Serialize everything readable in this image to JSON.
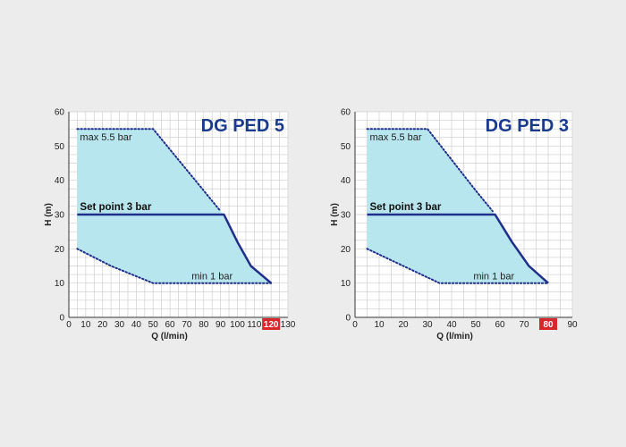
{
  "chart_data": [
    {
      "type": "area",
      "title": "DG PED 5",
      "xlabel": "Q (l/min)",
      "ylabel": "H (m)",
      "xlim": [
        0,
        130
      ],
      "ylim": [
        0,
        60
      ],
      "x_ticks": [
        0,
        10,
        20,
        30,
        40,
        50,
        60,
        70,
        80,
        90,
        100,
        110,
        120,
        130
      ],
      "y_ticks": [
        0,
        10,
        20,
        30,
        40,
        50,
        60
      ],
      "highlighted_x_tick": 120,
      "grid": true,
      "fill_color": "#b8e6ee",
      "line_color": "#1f2f8a",
      "highlight_color": "#d9262b",
      "max_curve": {
        "label": "max 5.5 bar",
        "points": [
          [
            5,
            55
          ],
          [
            50,
            55
          ],
          [
            65,
            46
          ],
          [
            80,
            37
          ],
          [
            90,
            31
          ]
        ]
      },
      "set_point": {
        "label": "Set point 3 bar",
        "points": [
          [
            5,
            30
          ],
          [
            92,
            30
          ],
          [
            100,
            22
          ],
          [
            108,
            15
          ],
          [
            120,
            10
          ]
        ]
      },
      "min_curve": {
        "label": "min 1 bar",
        "points": [
          [
            5,
            20
          ],
          [
            25,
            15
          ],
          [
            50,
            10
          ],
          [
            120,
            10
          ]
        ]
      }
    },
    {
      "type": "area",
      "title": "DG PED 3",
      "xlabel": "Q (l/min)",
      "ylabel": "H (m)",
      "xlim": [
        0,
        90
      ],
      "ylim": [
        0,
        60
      ],
      "x_ticks": [
        0,
        10,
        20,
        30,
        40,
        50,
        60,
        70,
        80,
        90
      ],
      "y_ticks": [
        0,
        10,
        20,
        30,
        40,
        50,
        60
      ],
      "highlighted_x_tick": 80,
      "grid": true,
      "fill_color": "#b8e6ee",
      "line_color": "#1f2f8a",
      "highlight_color": "#d9262b",
      "max_curve": {
        "label": "max 5.5 bar",
        "points": [
          [
            5,
            55
          ],
          [
            30,
            55
          ],
          [
            40,
            46
          ],
          [
            50,
            37
          ],
          [
            57,
            31
          ]
        ]
      },
      "set_point": {
        "label": "Set point 3 bar",
        "points": [
          [
            5,
            30
          ],
          [
            58,
            30
          ],
          [
            65,
            22
          ],
          [
            72,
            15
          ],
          [
            80,
            10
          ]
        ]
      },
      "min_curve": {
        "label": "min 1 bar",
        "points": [
          [
            5,
            20
          ],
          [
            20,
            15
          ],
          [
            35,
            10
          ],
          [
            80,
            10
          ]
        ]
      }
    }
  ]
}
